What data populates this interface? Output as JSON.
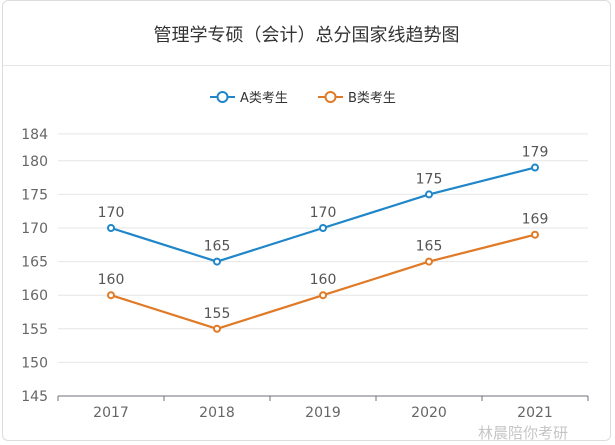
{
  "title": "管理学专硕（会计）总分国家线趋势图",
  "watermark": "林晨陪你考研",
  "chart_data": {
    "type": "line",
    "title": "管理学专硕（会计）总分国家线趋势图",
    "categories": [
      "2017",
      "2018",
      "2019",
      "2020",
      "2021"
    ],
    "series": [
      {
        "name": "A类考生",
        "values": [
          170,
          165,
          170,
          175,
          179
        ],
        "color": "#1f86c9"
      },
      {
        "name": "B类考生",
        "values": [
          160,
          155,
          160,
          165,
          169
        ],
        "color": "#e07a26"
      }
    ],
    "yticks": [
      145,
      150,
      155,
      160,
      165,
      170,
      175,
      180,
      184
    ],
    "ylim": [
      145,
      184
    ],
    "grid": true,
    "legend": "top-center"
  }
}
